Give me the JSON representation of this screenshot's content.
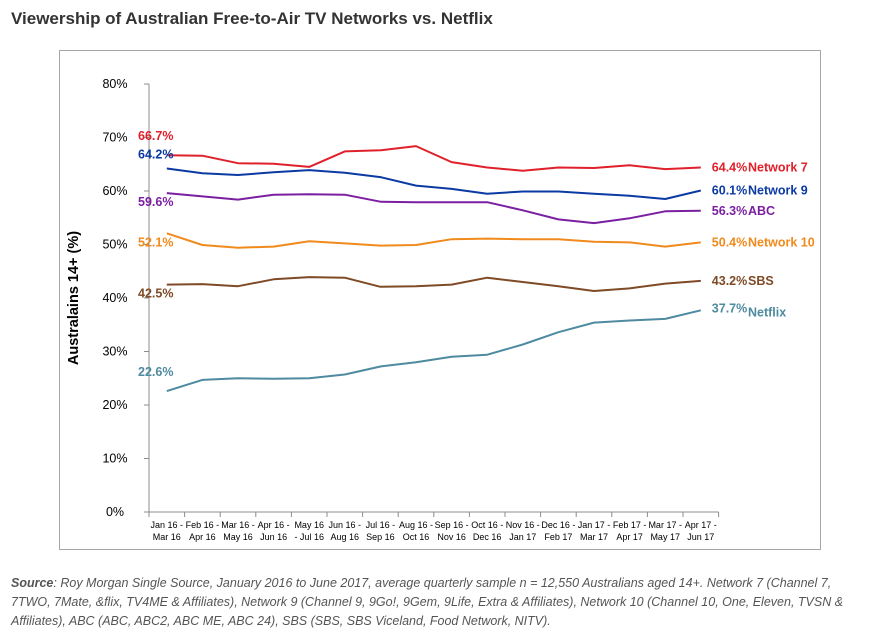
{
  "page": {
    "title": "Viewership of Australian Free-to-Air TV Networks vs. Netflix"
  },
  "source": {
    "label": "Source",
    "text": ": Roy Morgan Single Source, January 2016 to June 2017, average quarterly sample n = 12,550 Australians aged 14+. Network 7 (Channel 7, 7TWO, 7Mate, &flix, TV4ME & Affiliates), Network 9 (Channel 9, 9Go!, 9Gem, 9Life, Extra & Affiliates), Network 10 (Channel 10, One, Eleven, TVSN & Affiliates), ABC (ABC, ABC2, ABC ME, ABC 24), SBS (SBS, SBS Viceland, Food Network, NITV)."
  },
  "chart_data": {
    "type": "line",
    "title": "Viewership of Australian Free-to-Air TV Networks vs. Netflix",
    "xlabel": "",
    "ylabel": "Australains 14+ (%)",
    "ylim": [
      0,
      80
    ],
    "yticks": [
      0,
      10,
      20,
      30,
      40,
      50,
      60,
      70,
      80
    ],
    "ytick_labels": [
      "0%",
      "10%",
      "20%",
      "30%",
      "40%",
      "50%",
      "60%",
      "70%",
      "80%"
    ],
    "grid": false,
    "categories": [
      [
        "Jan 16 -",
        "Mar 16"
      ],
      [
        "Feb 16 -",
        "Apr 16"
      ],
      [
        "Mar 16 -",
        "May 16"
      ],
      [
        "Apr 16 -",
        "Jun 16"
      ],
      [
        "May 16",
        "- Jul 16"
      ],
      [
        "Jun 16 -",
        "Aug 16"
      ],
      [
        "Jul 16 -",
        "Sep 16"
      ],
      [
        "Aug 16 -",
        "Oct 16"
      ],
      [
        "Sep 16 -",
        "Nov 16"
      ],
      [
        "Oct 16 -",
        "Dec 16"
      ],
      [
        "Nov 16 -",
        "Jan 17"
      ],
      [
        "Dec 16 -",
        "Feb 17"
      ],
      [
        "Jan 17 -",
        "Mar 17"
      ],
      [
        "Feb 17 -",
        "Apr 17"
      ],
      [
        "Mar 17 -",
        "May 17"
      ],
      [
        "Apr 17 -",
        "Jun 17"
      ]
    ],
    "series": [
      {
        "name": "Network 7",
        "color": "#e0202b",
        "start_label": "66.7%",
        "end_label": "64.4%",
        "values": [
          66.7,
          66.6,
          65.2,
          65.1,
          64.5,
          67.4,
          67.6,
          68.4,
          65.4,
          64.4,
          63.8,
          64.4,
          64.3,
          64.8,
          64.1,
          64.4
        ]
      },
      {
        "name": "Network 9",
        "color": "#0b3aa3",
        "start_label": "64.2%",
        "end_label": "60.1%",
        "values": [
          64.2,
          63.3,
          63.0,
          63.5,
          63.9,
          63.4,
          62.6,
          61.0,
          60.4,
          59.5,
          59.9,
          59.9,
          59.5,
          59.1,
          58.5,
          60.1
        ]
      },
      {
        "name": "ABC",
        "color": "#7b1fa2",
        "start_label": "59.6%",
        "end_label": "56.3%",
        "values": [
          59.6,
          59.0,
          58.4,
          59.3,
          59.4,
          59.3,
          58.0,
          57.9,
          57.9,
          57.9,
          56.4,
          54.7,
          54.0,
          54.9,
          56.2,
          56.3
        ]
      },
      {
        "name": "Network 10",
        "color": "#f08a1c",
        "start_label": "52.1%",
        "end_label": "50.4%",
        "values": [
          52.1,
          49.9,
          49.4,
          49.6,
          50.6,
          50.2,
          49.8,
          49.9,
          51.0,
          51.1,
          51.0,
          51.0,
          50.5,
          50.4,
          49.6,
          50.4
        ]
      },
      {
        "name": "SBS",
        "color": "#7f4a26",
        "start_label": "42.5%",
        "end_label": "43.2%",
        "values": [
          42.5,
          42.6,
          42.2,
          43.5,
          43.9,
          43.8,
          42.1,
          42.2,
          42.5,
          43.8,
          43.0,
          42.2,
          41.3,
          41.8,
          42.7,
          43.2
        ]
      },
      {
        "name": "Netflix",
        "color": "#4e8aa0",
        "start_label": "22.6%",
        "end_label": "37.7%",
        "values": [
          22.6,
          24.7,
          25.0,
          24.9,
          25.0,
          25.7,
          27.2,
          28.0,
          29.0,
          29.4,
          31.3,
          33.6,
          35.4,
          35.8,
          36.1,
          37.7
        ]
      }
    ]
  }
}
